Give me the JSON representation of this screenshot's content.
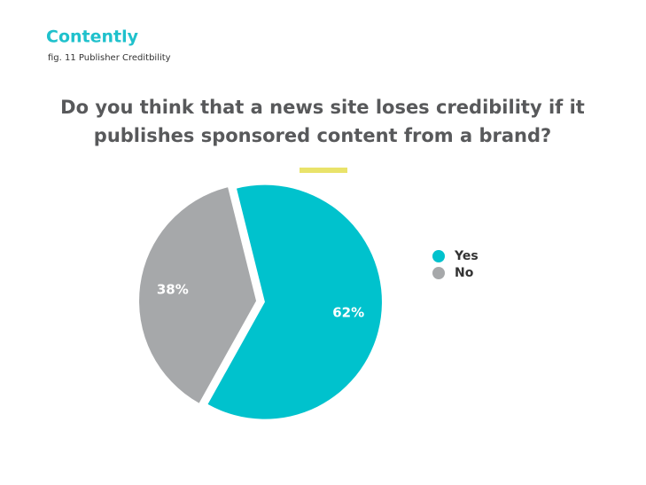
{
  "brand": "Contently",
  "figure_label": "fig. 11 Publisher Creditbility",
  "chart_data": {
    "type": "pie",
    "title": [
      "Do you think that a news site loses credibility if it",
      "publishes sponsored content from a brand?"
    ],
    "categories": [
      "Yes",
      "No"
    ],
    "values": [
      62,
      38
    ],
    "value_labels": [
      "62%",
      "38%"
    ],
    "colors": [
      "#00c2cd",
      "#a6a8aa"
    ],
    "legend": "right"
  }
}
